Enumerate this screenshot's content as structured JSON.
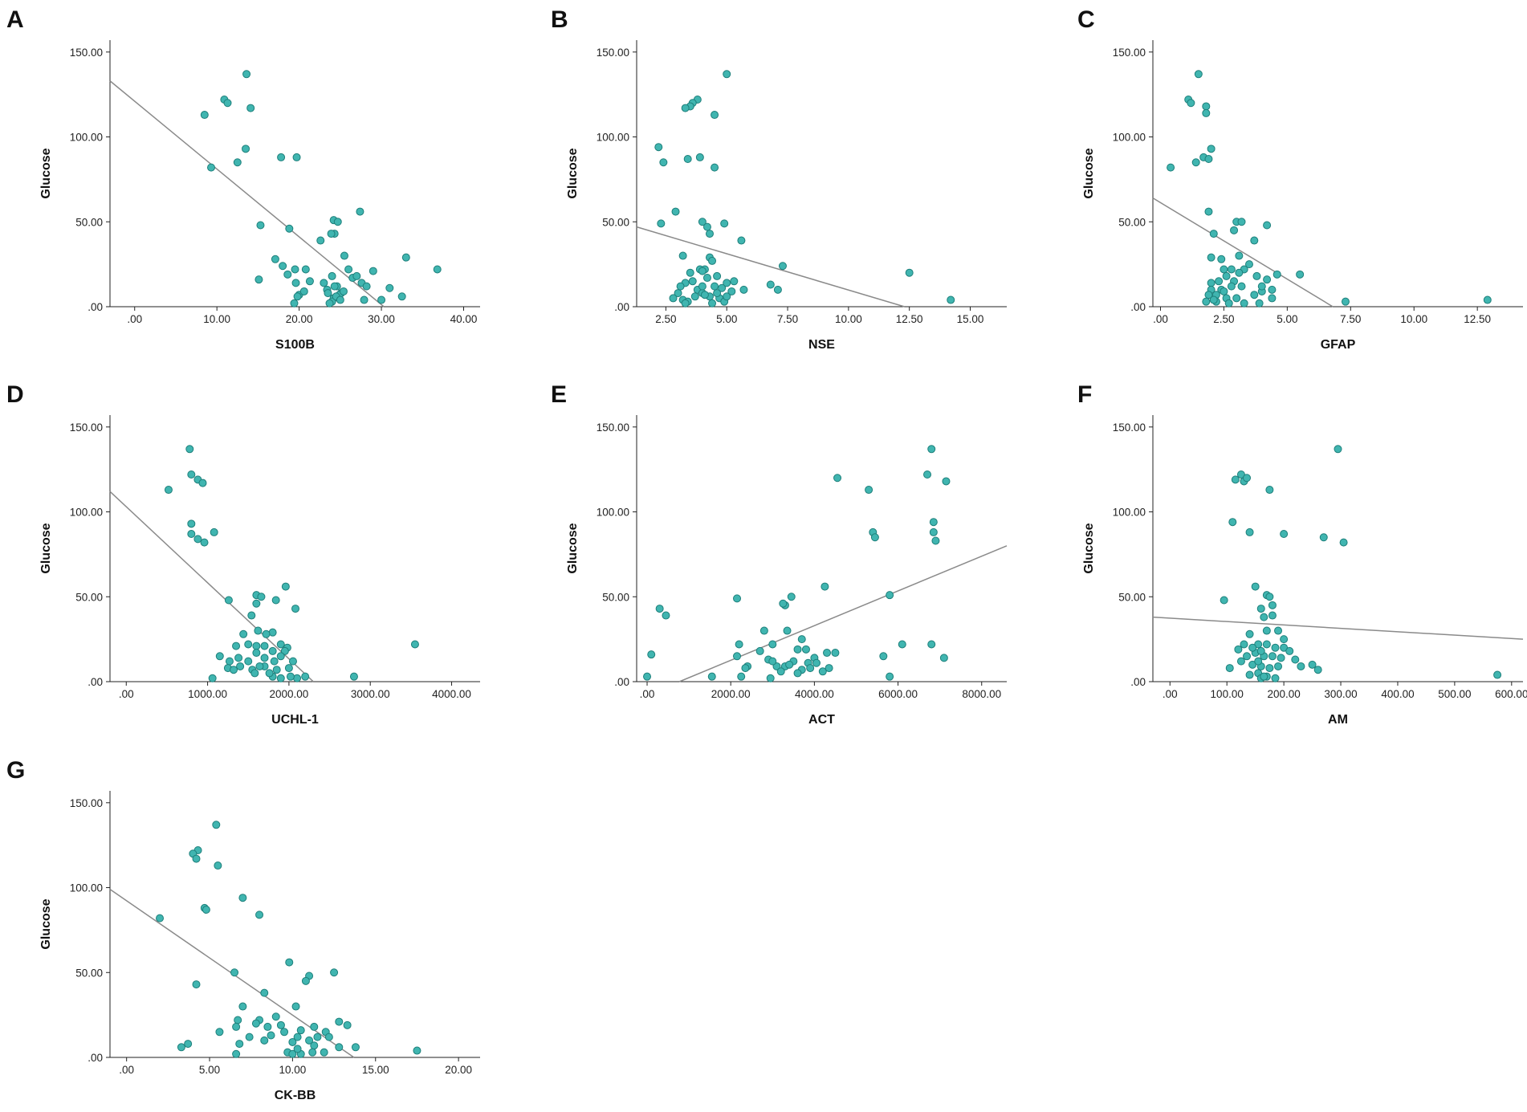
{
  "colors": {
    "point_fill": "#40b5b0",
    "point_stroke": "#1d7f7a",
    "fit_line": "#8a8a8a",
    "axis": "#222222"
  },
  "chart_data": [
    {
      "type": "scatter",
      "panel": "A",
      "title": "",
      "xlabel": "S100B",
      "ylabel": "Glucose",
      "xlim": [
        -3,
        42
      ],
      "ylim": [
        0,
        157
      ],
      "xticks": [
        ".00",
        "10.00",
        "20.00",
        "30.00",
        "40.00"
      ],
      "xtick_values": [
        0,
        10,
        20,
        30,
        40
      ],
      "yticks": [
        ".00",
        "50.00",
        "100.00",
        "150.00"
      ],
      "ytick_values": [
        0,
        50,
        100,
        150
      ],
      "fit_line": [
        [
          -3,
          133
        ],
        [
          30.3,
          0
        ]
      ],
      "x": [
        13.6,
        10.9,
        11.3,
        14.1,
        8.5,
        13.5,
        9.3,
        12.5,
        17.8,
        19.7,
        15.3,
        18.8,
        27.4,
        24.2,
        24.7,
        24.3,
        23.9,
        22.6,
        17.1,
        18.0,
        18.6,
        19.5,
        20.8,
        21.3,
        15.1,
        19.6,
        20.0,
        20.6,
        19.8,
        23.0,
        23.4,
        24.0,
        24.6,
        25.1,
        25.5,
        26.0,
        26.5,
        27.0,
        27.6,
        28.2,
        29.0,
        30.0,
        31.0,
        32.5,
        33.0,
        36.8,
        23.5,
        24.2,
        24.9,
        25.4,
        27.9,
        24.0,
        24.5,
        25.0,
        23.7,
        24.3,
        19.4
      ],
      "y": [
        137,
        122,
        120,
        117,
        113,
        93,
        82,
        85,
        88,
        88,
        48,
        46,
        56,
        51,
        50,
        43,
        43,
        39,
        28,
        24,
        19,
        22,
        22,
        15,
        16,
        14,
        7,
        9,
        6,
        14,
        10,
        18,
        12,
        8,
        30,
        22,
        17,
        18,
        14,
        12,
        21,
        4,
        11,
        6,
        29,
        22,
        8,
        5,
        7,
        9,
        4,
        3,
        6,
        4,
        2,
        12,
        2
      ]
    },
    {
      "type": "scatter",
      "panel": "B",
      "title": "",
      "xlabel": "NSE",
      "ylabel": "Glucose",
      "xlim": [
        1.3,
        16.5
      ],
      "ylim": [
        0,
        157
      ],
      "xticks": [
        "2.50",
        "5.00",
        "7.50",
        "10.00",
        "12.50",
        "15.00"
      ],
      "xtick_values": [
        2.5,
        5,
        7.5,
        10,
        12.5,
        15
      ],
      "yticks": [
        ".00",
        "50.00",
        "100.00",
        "150.00"
      ],
      "ytick_values": [
        0,
        50,
        100,
        150
      ],
      "fit_line": [
        [
          1.3,
          47
        ],
        [
          12.3,
          0
        ]
      ],
      "x": [
        5.0,
        3.8,
        3.6,
        3.5,
        3.3,
        4.5,
        2.2,
        2.4,
        3.4,
        3.9,
        4.5,
        2.9,
        2.3,
        4.0,
        4.2,
        4.3,
        4.9,
        5.6,
        7.3,
        3.2,
        4.3,
        4.4,
        3.9,
        4.1,
        3.5,
        4.6,
        3.6,
        4.0,
        4.2,
        4.5,
        5.0,
        4.8,
        3.3,
        3.0,
        3.1,
        3.8,
        4.0,
        4.3,
        4.7,
        5.2,
        5.7,
        6.8,
        7.1,
        12.5,
        14.2,
        3.2,
        3.4,
        4.1,
        4.4,
        4.9,
        3.7,
        2.8,
        3.3,
        4.0,
        4.6,
        5.0,
        5.3
      ],
      "y": [
        137,
        122,
        120,
        118,
        117,
        113,
        94,
        85,
        87,
        88,
        82,
        56,
        49,
        50,
        47,
        43,
        49,
        39,
        24,
        30,
        29,
        27,
        22,
        22,
        20,
        18,
        15,
        21,
        17,
        12,
        14,
        11,
        14,
        8,
        12,
        10,
        8,
        6,
        5,
        9,
        10,
        13,
        10,
        20,
        4,
        4,
        3,
        7,
        2,
        3,
        6,
        5,
        2,
        12,
        8,
        6,
        15
      ]
    },
    {
      "type": "scatter",
      "panel": "C",
      "title": "",
      "xlabel": "GFAP",
      "ylabel": "Glucose",
      "xlim": [
        -0.3,
        14.3
      ],
      "ylim": [
        0,
        157
      ],
      "xticks": [
        ".00",
        "2.50",
        "5.00",
        "7.50",
        "10.00",
        "12.50"
      ],
      "xtick_values": [
        0,
        2.5,
        5,
        7.5,
        10,
        12.5
      ],
      "yticks": [
        ".00",
        "50.00",
        "100.00",
        "150.00"
      ],
      "ytick_values": [
        0,
        50,
        100,
        150
      ],
      "fit_line": [
        [
          -0.3,
          64
        ],
        [
          6.8,
          0
        ]
      ],
      "x": [
        1.5,
        1.1,
        1.2,
        1.8,
        1.8,
        2.0,
        1.7,
        1.4,
        1.9,
        0.4,
        1.9,
        3.0,
        3.2,
        4.2,
        2.1,
        2.9,
        3.7,
        2.0,
        2.4,
        2.5,
        2.8,
        3.3,
        3.5,
        3.1,
        2.0,
        2.3,
        2.6,
        2.9,
        3.1,
        3.8,
        4.2,
        4.6,
        5.5,
        2.0,
        2.4,
        2.8,
        3.2,
        4.0,
        4.4,
        1.9,
        2.2,
        2.6,
        3.0,
        3.7,
        7.3,
        12.9,
        1.8,
        2.2,
        2.7,
        3.3,
        3.9,
        2.1,
        2.5,
        4.0,
        4.4
      ],
      "y": [
        137,
        122,
        120,
        118,
        114,
        93,
        88,
        85,
        87,
        82,
        56,
        50,
        50,
        48,
        43,
        45,
        39,
        29,
        28,
        22,
        22,
        22,
        25,
        30,
        14,
        15,
        18,
        15,
        20,
        18,
        16,
        19,
        19,
        10,
        10,
        12,
        12,
        9,
        10,
        7,
        7,
        5,
        5,
        7,
        3,
        4,
        3,
        3,
        2,
        2,
        2,
        4,
        9,
        12,
        5
      ]
    },
    {
      "type": "scatter",
      "panel": "D",
      "title": "",
      "xlabel": "UCHL-1",
      "ylabel": "Glucose",
      "xlim": [
        -200,
        4350
      ],
      "ylim": [
        0,
        157
      ],
      "xticks": [
        ".00",
        "1000.00",
        "2000.00",
        "3000.00",
        "4000.00"
      ],
      "xtick_values": [
        0,
        1000,
        2000,
        3000,
        4000
      ],
      "yticks": [
        ".00",
        "50.00",
        "100.00",
        "150.00"
      ],
      "ytick_values": [
        0,
        50,
        100,
        150
      ],
      "fit_line": [
        [
          -200,
          112
        ],
        [
          2300,
          0
        ]
      ],
      "x": [
        780,
        800,
        880,
        940,
        520,
        800,
        1080,
        800,
        880,
        960,
        1260,
        1600,
        1960,
        1660,
        1840,
        1540,
        1600,
        2080,
        1440,
        1620,
        1800,
        1500,
        1700,
        1720,
        1900,
        1980,
        1350,
        1600,
        1800,
        1950,
        1150,
        1270,
        1380,
        1500,
        1600,
        1700,
        1820,
        1900,
        2050,
        1250,
        1400,
        1550,
        1700,
        1850,
        2000,
        1800,
        1900,
        2100,
        2200,
        2800,
        3550,
        1060,
        1320,
        1580,
        1640,
        1760,
        2020
      ],
      "y": [
        137,
        122,
        119,
        117,
        113,
        93,
        88,
        87,
        84,
        82,
        48,
        51,
        56,
        50,
        48,
        39,
        46,
        43,
        28,
        30,
        29,
        22,
        21,
        28,
        22,
        20,
        21,
        21,
        18,
        18,
        15,
        12,
        14,
        12,
        17,
        14,
        12,
        15,
        12,
        8,
        9,
        7,
        9,
        7,
        8,
        3,
        2,
        2,
        3,
        3,
        22,
        2,
        7,
        5,
        9,
        5,
        3
      ]
    },
    {
      "type": "scatter",
      "panel": "E",
      "title": "",
      "xlabel": "ACT",
      "ylabel": "Glucose",
      "xlim": [
        -250,
        8600
      ],
      "ylim": [
        0,
        157
      ],
      "xticks": [
        ".00",
        "2000.00",
        "4000.00",
        "6000.00",
        "8000.00"
      ],
      "xtick_values": [
        0,
        2000,
        4000,
        6000,
        8000
      ],
      "yticks": [
        ".00",
        "50.00",
        "100.00",
        "150.00"
      ],
      "ytick_values": [
        0,
        50,
        100,
        150
      ],
      "fit_line": [
        [
          770,
          0
        ],
        [
          8600,
          80
        ]
      ],
      "x": [
        6800,
        4550,
        7150,
        5300,
        6700,
        6850,
        5400,
        6900,
        5450,
        6850,
        300,
        450,
        2150,
        3450,
        4250,
        3300,
        3250,
        5800,
        100,
        2200,
        2800,
        3000,
        3350,
        3600,
        3800,
        4300,
        5650,
        6100,
        7100,
        6800,
        2150,
        2400,
        2900,
        3100,
        3500,
        3850,
        4000,
        4500,
        2350,
        3000,
        3300,
        3700,
        4050,
        4200,
        0,
        2250,
        1550,
        2950,
        3200,
        3900,
        5800,
        3400,
        2700,
        3600,
        4350,
        3700
      ],
      "y": [
        137,
        120,
        118,
        113,
        122,
        94,
        88,
        83,
        85,
        88,
        43,
        39,
        49,
        50,
        56,
        45,
        46,
        51,
        16,
        22,
        30,
        22,
        30,
        19,
        19,
        17,
        15,
        22,
        14,
        22,
        15,
        9,
        13,
        9,
        12,
        11,
        14,
        17,
        8,
        12,
        9,
        7,
        11,
        6,
        3,
        3,
        3,
        2,
        6,
        8,
        3,
        10,
        18,
        5,
        8,
        25
      ]
    },
    {
      "type": "scatter",
      "panel": "F",
      "title": "",
      "xlabel": "AM",
      "ylabel": "Glucose",
      "xlim": [
        -30,
        620
      ],
      "ylim": [
        0,
        157
      ],
      "xticks": [
        ".00",
        "100.00",
        "200.00",
        "300.00",
        "400.00",
        "500.00",
        "600.00"
      ],
      "xtick_values": [
        0,
        100,
        200,
        300,
        400,
        500,
        600
      ],
      "yticks": [
        ".00",
        "50.00",
        "100.00",
        "150.00"
      ],
      "ytick_values": [
        0,
        50,
        100,
        150
      ],
      "fit_line": [
        [
          -30,
          38
        ],
        [
          620,
          25
        ]
      ],
      "x": [
        295,
        125,
        130,
        115,
        135,
        175,
        110,
        140,
        200,
        270,
        305,
        95,
        150,
        170,
        175,
        180,
        160,
        165,
        190,
        200,
        140,
        155,
        170,
        185,
        200,
        210,
        120,
        135,
        150,
        165,
        180,
        195,
        220,
        250,
        105,
        125,
        145,
        160,
        175,
        190,
        230,
        260,
        140,
        155,
        170,
        185,
        575,
        160,
        165,
        130,
        145,
        170,
        180,
        160,
        155
      ],
      "y": [
        137,
        122,
        118,
        119,
        120,
        113,
        94,
        88,
        87,
        85,
        82,
        48,
        56,
        51,
        50,
        45,
        43,
        38,
        30,
        25,
        28,
        22,
        22,
        20,
        20,
        18,
        19,
        15,
        17,
        15,
        15,
        14,
        13,
        10,
        8,
        12,
        10,
        9,
        8,
        9,
        9,
        7,
        4,
        5,
        3,
        2,
        4,
        2,
        3,
        22,
        20,
        30,
        39,
        18,
        12
      ]
    },
    {
      "type": "scatter",
      "panel": "G",
      "title": "",
      "xlabel": "CK-BB",
      "ylabel": "Glucose",
      "xlim": [
        -1,
        21.3
      ],
      "ylim": [
        0,
        157
      ],
      "xticks": [
        ".00",
        "5.00",
        "10.00",
        "15.00",
        "20.00"
      ],
      "xtick_values": [
        0,
        5,
        10,
        15,
        20
      ],
      "yticks": [
        ".00",
        "50.00",
        "100.00",
        "150.00"
      ],
      "ytick_values": [
        0,
        50,
        100,
        150
      ],
      "fit_line": [
        [
          -1,
          99
        ],
        [
          13.7,
          0
        ]
      ],
      "x": [
        5.4,
        4.3,
        4.0,
        4.2,
        5.5,
        7.0,
        4.7,
        4.8,
        8.0,
        2.0,
        9.8,
        6.5,
        11.0,
        12.5,
        10.8,
        4.2,
        8.3,
        7.0,
        10.2,
        6.7,
        8.0,
        9.0,
        11.3,
        12.8,
        13.3,
        7.8,
        8.5,
        9.3,
        10.5,
        11.5,
        12.0,
        5.6,
        6.6,
        7.4,
        8.7,
        9.5,
        10.3,
        11.0,
        12.2,
        3.7,
        3.3,
        6.8,
        8.3,
        10.0,
        11.3,
        12.8,
        13.8,
        9.7,
        10.0,
        10.5,
        11.2,
        17.5,
        6.6,
        10.3,
        11.9
      ],
      "y": [
        137,
        122,
        120,
        117,
        113,
        94,
        88,
        87,
        84,
        82,
        56,
        50,
        48,
        50,
        45,
        43,
        38,
        30,
        30,
        22,
        22,
        24,
        18,
        21,
        19,
        20,
        18,
        19,
        16,
        12,
        15,
        15,
        18,
        12,
        13,
        15,
        12,
        10,
        12,
        8,
        6,
        8,
        10,
        9,
        7,
        6,
        6,
        3,
        2,
        2,
        3,
        4,
        2,
        5,
        3
      ]
    }
  ]
}
